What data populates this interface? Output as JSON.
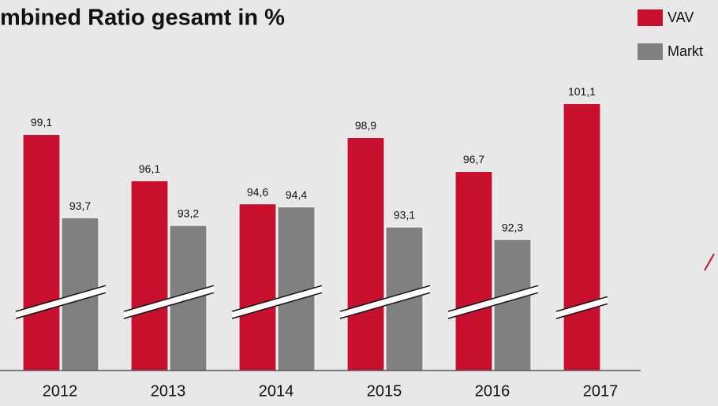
{
  "chart_data": {
    "type": "bar",
    "title": "mbined Ratio gesamt in %",
    "categories": [
      "2012",
      "2013",
      "2014",
      "2015",
      "2016",
      "2017"
    ],
    "series": [
      {
        "name": "VAV",
        "color": "#c8102e",
        "values": [
          99.1,
          96.1,
          94.6,
          98.9,
          96.7,
          101.1
        ],
        "value_labels": [
          "99,1",
          "96,1",
          "94,6",
          "98,9",
          "96,7",
          "101,1"
        ]
      },
      {
        "name": "Markt",
        "color": "#808080",
        "values": [
          93.7,
          93.2,
          94.4,
          93.1,
          92.3,
          null
        ],
        "value_labels": [
          "93,7",
          "93,2",
          "94,4",
          "93,1",
          "92,3",
          null
        ]
      }
    ],
    "ylim": [
      83.8,
      102.5
    ],
    "broken_axis": true,
    "legend": "top-right"
  }
}
